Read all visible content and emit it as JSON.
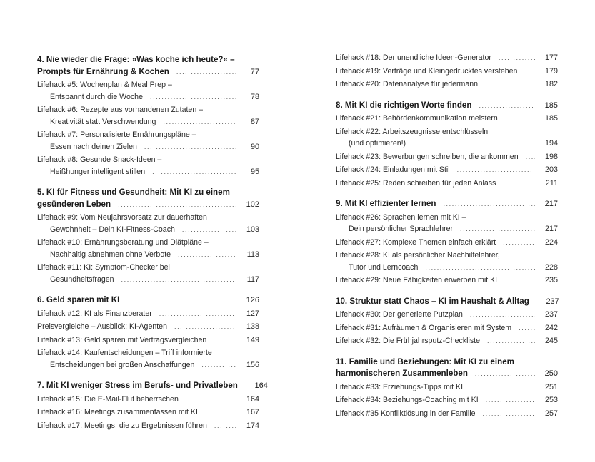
{
  "left_column": [
    {
      "type": "chapter",
      "lines": [
        "4. Nie wieder die Frage: »Was koche ich heute?« –",
        "Prompts für Ernährung & Kochen"
      ],
      "page": "77"
    },
    {
      "type": "lifehack",
      "lines": [
        "Lifehack #5: Wochenplan & Meal Prep –",
        "Entspannt durch die Woche"
      ],
      "page": "78"
    },
    {
      "type": "lifehack",
      "lines": [
        "Lifehack #6: Rezepte aus vorhandenen Zutaten –",
        "Kreativität statt Verschwendung"
      ],
      "page": "87"
    },
    {
      "type": "lifehack",
      "lines": [
        "Lifehack #7: Personalisierte Ernährungspläne –",
        "Essen nach deinen Zielen"
      ],
      "page": "90"
    },
    {
      "type": "lifehack",
      "lines": [
        "Lifehack #8: Gesunde Snack-Ideen –",
        "Heißhunger intelligent stillen"
      ],
      "page": "95"
    },
    {
      "type": "chapter",
      "lines": [
        "5. KI für Fitness und Gesundheit: Mit KI zu einem",
        "gesünderen Leben"
      ],
      "page": "102"
    },
    {
      "type": "lifehack",
      "lines": [
        "Lifehack #9: Vom Neujahrsvorsatz zur dauerhaften",
        "Gewohnheit – Dein KI-Fitness-Coach"
      ],
      "page": "103"
    },
    {
      "type": "lifehack",
      "lines": [
        "Lifehack #10: Ernährungsberatung und Diätpläne –",
        "Nachhaltig abnehmen ohne Verbote"
      ],
      "page": "113"
    },
    {
      "type": "lifehack",
      "lines": [
        "Lifehack #11: KI: Symptom-Checker bei",
        "Gesundheitsfragen"
      ],
      "page": "117"
    },
    {
      "type": "chapter",
      "lines": [
        "6. Geld sparen mit KI"
      ],
      "page": "126"
    },
    {
      "type": "lifehack",
      "lines": [
        "Lifehack #12: KI als Finanzberater"
      ],
      "page": "127"
    },
    {
      "type": "lifehack",
      "lines": [
        "Preisvergleiche – Ausblick: KI-Agenten"
      ],
      "page": "138"
    },
    {
      "type": "lifehack",
      "lines": [
        "Lifehack #13: Geld sparen mit Vertragsvergleichen"
      ],
      "page": "149"
    },
    {
      "type": "lifehack",
      "lines": [
        "Lifehack #14: Kaufentscheidungen – Triff informierte",
        "Entscheidungen bei großen Anschaffungen"
      ],
      "page": "156"
    },
    {
      "type": "chapter",
      "lines": [
        "7. Mit KI weniger Stress im Berufs- und Privatleben"
      ],
      "page": "164"
    },
    {
      "type": "lifehack",
      "lines": [
        "Lifehack #15: Die E-Mail-Flut beherrschen"
      ],
      "page": "164"
    },
    {
      "type": "lifehack",
      "lines": [
        "Lifehack #16: Meetings zusammenfassen mit KI"
      ],
      "page": "167"
    },
    {
      "type": "lifehack",
      "lines": [
        "Lifehack #17: Meetings, die zu Ergebnissen führen"
      ],
      "page": "174"
    }
  ],
  "right_column": [
    {
      "type": "lifehack",
      "lines": [
        "Lifehack #18: Der unendliche Ideen-Generator"
      ],
      "page": "177"
    },
    {
      "type": "lifehack",
      "lines": [
        "Lifehack #19: Verträge und Kleingedrucktes verstehen"
      ],
      "page": "179"
    },
    {
      "type": "lifehack",
      "lines": [
        "Lifehack #20: Datenanalyse für jedermann"
      ],
      "page": "182"
    },
    {
      "type": "chapter",
      "lines": [
        "8. Mit KI die richtigen Worte finden"
      ],
      "page": "185"
    },
    {
      "type": "lifehack",
      "lines": [
        "Lifehack #21: Behördenkommunikation meistern"
      ],
      "page": "185"
    },
    {
      "type": "lifehack",
      "lines": [
        "Lifehack #22: Arbeitszeugnisse entschlüsseln",
        "(und optimieren!)"
      ],
      "page": "194"
    },
    {
      "type": "lifehack",
      "lines": [
        "Lifehack #23: Bewerbungen schreiben, die ankommen"
      ],
      "page": "198"
    },
    {
      "type": "lifehack",
      "lines": [
        "Lifehack #24: Einladungen mit Stil"
      ],
      "page": "203"
    },
    {
      "type": "lifehack",
      "lines": [
        "Lifehack #25: Reden schreiben für jeden Anlass"
      ],
      "page": "211"
    },
    {
      "type": "chapter",
      "lines": [
        "9. Mit KI effizienter lernen"
      ],
      "page": "217"
    },
    {
      "type": "lifehack",
      "lines": [
        "Lifehack #26: Sprachen lernen mit KI –",
        "Dein persönlicher Sprachlehrer"
      ],
      "page": "217"
    },
    {
      "type": "lifehack",
      "lines": [
        "Lifehack #27: Komplexe Themen einfach erklärt"
      ],
      "page": "224"
    },
    {
      "type": "lifehack",
      "lines": [
        "Lifehack #28: KI als persönlicher Nachhilfelehrer,",
        "Tutor und Lerncoach"
      ],
      "page": "228"
    },
    {
      "type": "lifehack",
      "lines": [
        "Lifehack #29: Neue Fähigkeiten erwerben mit KI"
      ],
      "page": "235"
    },
    {
      "type": "chapter",
      "lines": [
        "10. Struktur statt Chaos – KI im Haushalt & Alltag"
      ],
      "page": "237"
    },
    {
      "type": "lifehack",
      "lines": [
        "Lifehack #30: Der generierte Putzplan"
      ],
      "page": "237"
    },
    {
      "type": "lifehack",
      "lines": [
        "Lifehack #31: Aufräumen & Organisieren mit System"
      ],
      "page": "242"
    },
    {
      "type": "lifehack",
      "lines": [
        "Lifehack #32: Die Frühjahrsputz-Checkliste"
      ],
      "page": "245"
    },
    {
      "type": "chapter",
      "lines": [
        "11. Familie und Beziehungen: Mit KI zu einem",
        "harmonischeren Zusammenleben"
      ],
      "page": "250"
    },
    {
      "type": "lifehack",
      "lines": [
        "Lifehack #33: Erziehungs-Tipps mit KI"
      ],
      "page": "251"
    },
    {
      "type": "lifehack",
      "lines": [
        "Lifehack #34: Beziehungs-Coaching mit KI"
      ],
      "page": "253"
    },
    {
      "type": "lifehack",
      "lines": [
        "Lifehack #35 Konfliktlösung in der Familie"
      ],
      "page": "257"
    }
  ]
}
